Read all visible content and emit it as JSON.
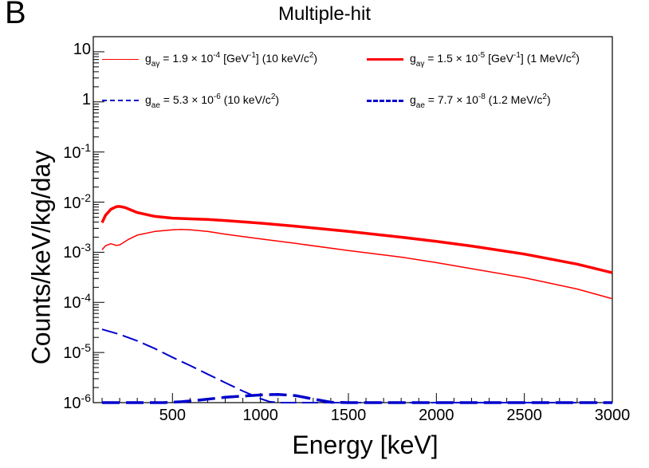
{
  "panel_letter": "B",
  "chart_data": {
    "type": "line",
    "title": "Multiple-hit",
    "xlabel": "Energy [keV]",
    "ylabel": "Counts/keV/kg/day",
    "xlim": [
      50,
      3000
    ],
    "ylim": [
      1e-06,
      20
    ],
    "yscale": "log",
    "x_ticks": [
      "500",
      "1000",
      "1500",
      "2000",
      "2500",
      "3000"
    ],
    "y_ticks": [
      {
        "base": "10",
        "exp": "-6"
      },
      {
        "base": "10",
        "exp": "-5"
      },
      {
        "base": "10",
        "exp": "-4"
      },
      {
        "base": "10",
        "exp": "-3"
      },
      {
        "base": "10",
        "exp": "-2"
      },
      {
        "base": "10",
        "exp": "-1"
      },
      {
        "base": "1",
        "exp": ""
      },
      {
        "base": "10",
        "exp": ""
      }
    ],
    "grid": false,
    "legend_position": "top",
    "series": [
      {
        "legend": {
          "sym": "g",
          "sub": "aγ",
          "mid": " = 1.9 × 10",
          "exp": "-4",
          "post": " [GeV",
          "exp2": "-1",
          "post2": "] (10 keV/c",
          "exp3": "2",
          "end": ")"
        },
        "color": "#ff0000",
        "width": 1.5,
        "dash": "solid",
        "points": [
          [
            100,
            0.00112
          ],
          [
            120,
            0.00135
          ],
          [
            150,
            0.00148
          ],
          [
            180,
            0.00137
          ],
          [
            200,
            0.0014
          ],
          [
            250,
            0.0018
          ],
          [
            300,
            0.0022
          ],
          [
            400,
            0.0026
          ],
          [
            500,
            0.0028
          ],
          [
            550,
            0.00285
          ],
          [
            600,
            0.0028
          ],
          [
            700,
            0.0026
          ],
          [
            800,
            0.0023
          ],
          [
            1000,
            0.00185
          ],
          [
            1200,
            0.0015
          ],
          [
            1500,
            0.00108
          ],
          [
            1800,
            0.0008
          ],
          [
            2000,
            0.00062
          ],
          [
            2200,
            0.00047
          ],
          [
            2500,
            0.00031
          ],
          [
            2800,
            0.000185
          ],
          [
            3000,
            0.000118
          ]
        ]
      },
      {
        "legend": {
          "sym": "g",
          "sub": "aγ",
          "mid": " = 1.5 × 10",
          "exp": "-5",
          "post": " [GeV",
          "exp2": "-1",
          "post2": "] (1 MeV/c",
          "exp3": "2",
          "end": ")"
        },
        "color": "#ff0000",
        "width": 3.5,
        "dash": "solid",
        "points": [
          [
            100,
            0.0039
          ],
          [
            120,
            0.0055
          ],
          [
            150,
            0.0072
          ],
          [
            180,
            0.0081
          ],
          [
            200,
            0.0082
          ],
          [
            230,
            0.0078
          ],
          [
            300,
            0.0062
          ],
          [
            400,
            0.0052
          ],
          [
            500,
            0.0048
          ],
          [
            700,
            0.0045
          ],
          [
            800,
            0.0043
          ],
          [
            1000,
            0.0038
          ],
          [
            1200,
            0.0033
          ],
          [
            1500,
            0.0026
          ],
          [
            1800,
            0.002
          ],
          [
            2000,
            0.00165
          ],
          [
            2200,
            0.00133
          ],
          [
            2500,
            0.00092
          ],
          [
            2800,
            0.00058
          ],
          [
            3000,
            0.00039
          ]
        ]
      },
      {
        "legend": {
          "sym": "g",
          "sub": "ae",
          "mid": " = 5.3 × 10",
          "exp": "-6",
          "post": " (10 keV/c",
          "exp2": "",
          "post2": "",
          "exp3": "2",
          "end": ")"
        },
        "color": "#0000cc",
        "width": 2,
        "dash": "20,7",
        "points": [
          [
            100,
            2.9e-05
          ],
          [
            200,
            2.3e-05
          ],
          [
            300,
            1.7e-05
          ],
          [
            400,
            1.2e-05
          ],
          [
            500,
            8e-06
          ],
          [
            600,
            5.5e-06
          ],
          [
            700,
            3.7e-06
          ],
          [
            800,
            2.5e-06
          ],
          [
            900,
            1.7e-06
          ],
          [
            1000,
            1.2e-06
          ],
          [
            1050,
            1.05e-06
          ],
          [
            1100,
            1e-06
          ],
          [
            3000,
            1e-06
          ]
        ]
      },
      {
        "legend": {
          "sym": "g",
          "sub": "ae",
          "mid": " = 7.7 × 10",
          "exp": "-8",
          "post": " (1.2 MeV/c",
          "exp2": "",
          "post2": "",
          "exp3": "2",
          "end": ")"
        },
        "color": "#0000cc",
        "width": 3.5,
        "dash": "22,8",
        "points": [
          [
            100,
            1e-06
          ],
          [
            450,
            1e-06
          ],
          [
            550,
            1.04e-06
          ],
          [
            650,
            1.12e-06
          ],
          [
            800,
            1.28e-06
          ],
          [
            1000,
            1.42e-06
          ],
          [
            1100,
            1.46e-06
          ],
          [
            1200,
            1.38e-06
          ],
          [
            1300,
            1.18e-06
          ],
          [
            1400,
            1.02e-06
          ],
          [
            1500,
            1e-06
          ],
          [
            3000,
            1e-06
          ]
        ]
      }
    ]
  }
}
